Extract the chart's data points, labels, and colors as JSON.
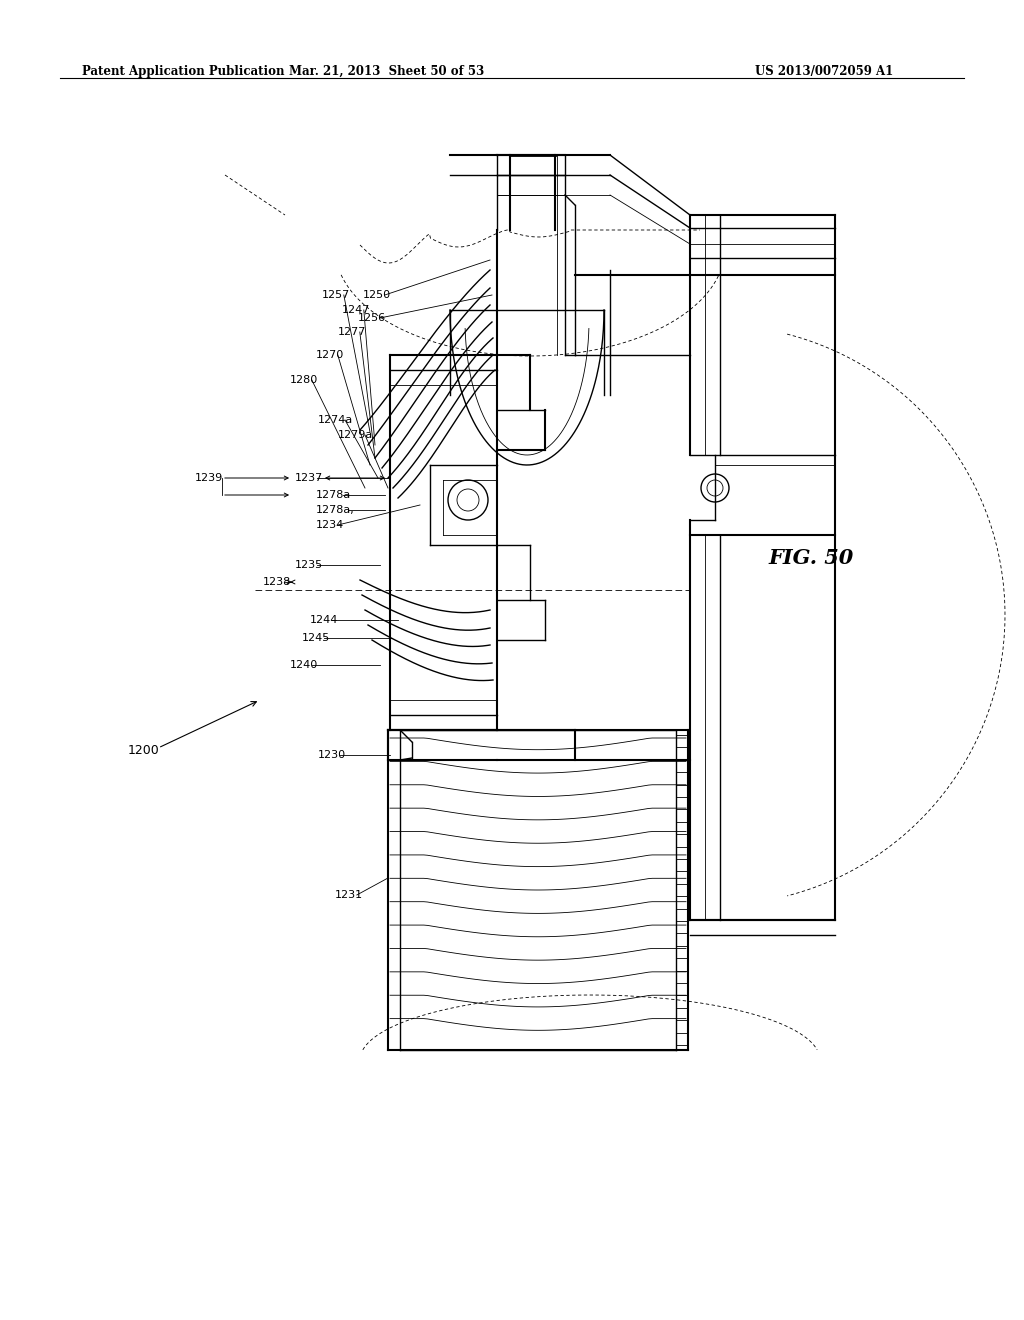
{
  "background_color": "#ffffff",
  "header_left": "Patent Application Publication",
  "header_center": "Mar. 21, 2013  Sheet 50 of 53",
  "header_right": "US 2013/0072059 A1",
  "fig_label": "FIG. 50",
  "fig_width": 10.24,
  "fig_height": 13.2,
  "dpi": 100
}
